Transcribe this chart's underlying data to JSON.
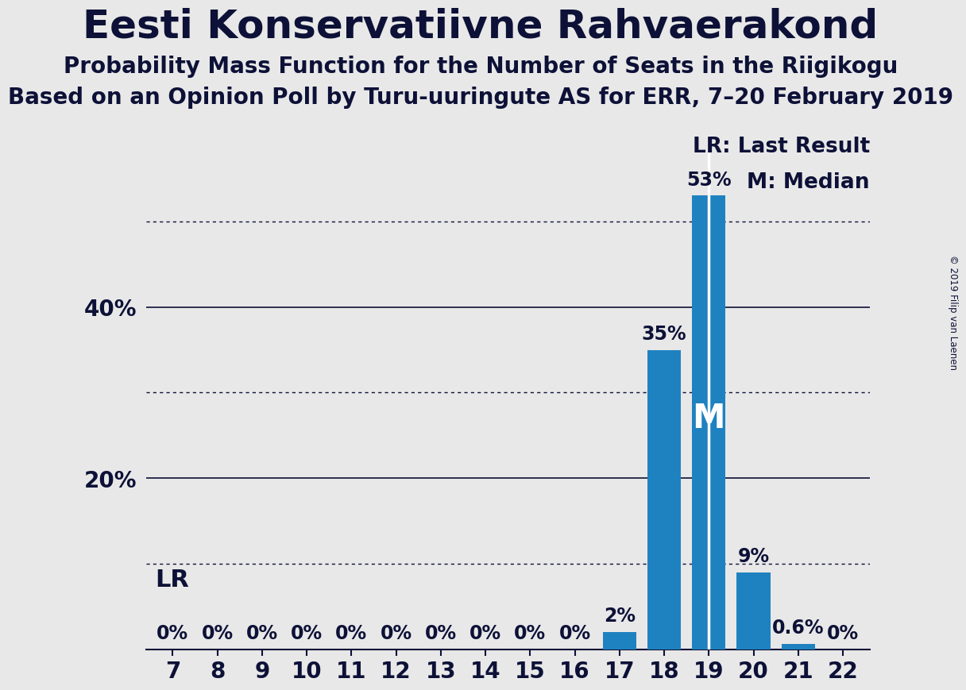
{
  "title": "Eesti Konservatiivne Rahvaerakond",
  "subtitle1": "Probability Mass Function for the Number of Seats in the Riigikogu",
  "subtitle2": "Based on an Opinion Poll by Turu-uuringute AS for ERR, 7–20 February 2019",
  "copyright": "© 2019 Filip van Laenen",
  "seats": [
    7,
    8,
    9,
    10,
    11,
    12,
    13,
    14,
    15,
    16,
    17,
    18,
    19,
    20,
    21,
    22
  ],
  "probabilities": [
    0,
    0,
    0,
    0,
    0,
    0,
    0,
    0,
    0,
    0,
    2,
    35,
    53,
    9,
    0.6,
    0
  ],
  "bar_color": "#1f82c0",
  "background_color": "#e8e8e8",
  "text_color": "#0d1137",
  "median_seat": 19,
  "median_line_color": "#ffffff",
  "grid_lines_dotted": [
    10,
    30,
    50
  ],
  "grid_lines_solid": [
    20,
    40
  ],
  "ylim": [
    0,
    60
  ],
  "title_fontsize": 36,
  "subtitle_fontsize": 20,
  "tick_fontsize": 20,
  "annotation_fontsize": 17,
  "legend_fontsize": 19,
  "median_label": "M",
  "legend_lr": "LR: Last Result",
  "legend_m": "M: Median",
  "lr_label": "LR",
  "lr_label_fontsize": 22,
  "median_m_fontsize": 30
}
